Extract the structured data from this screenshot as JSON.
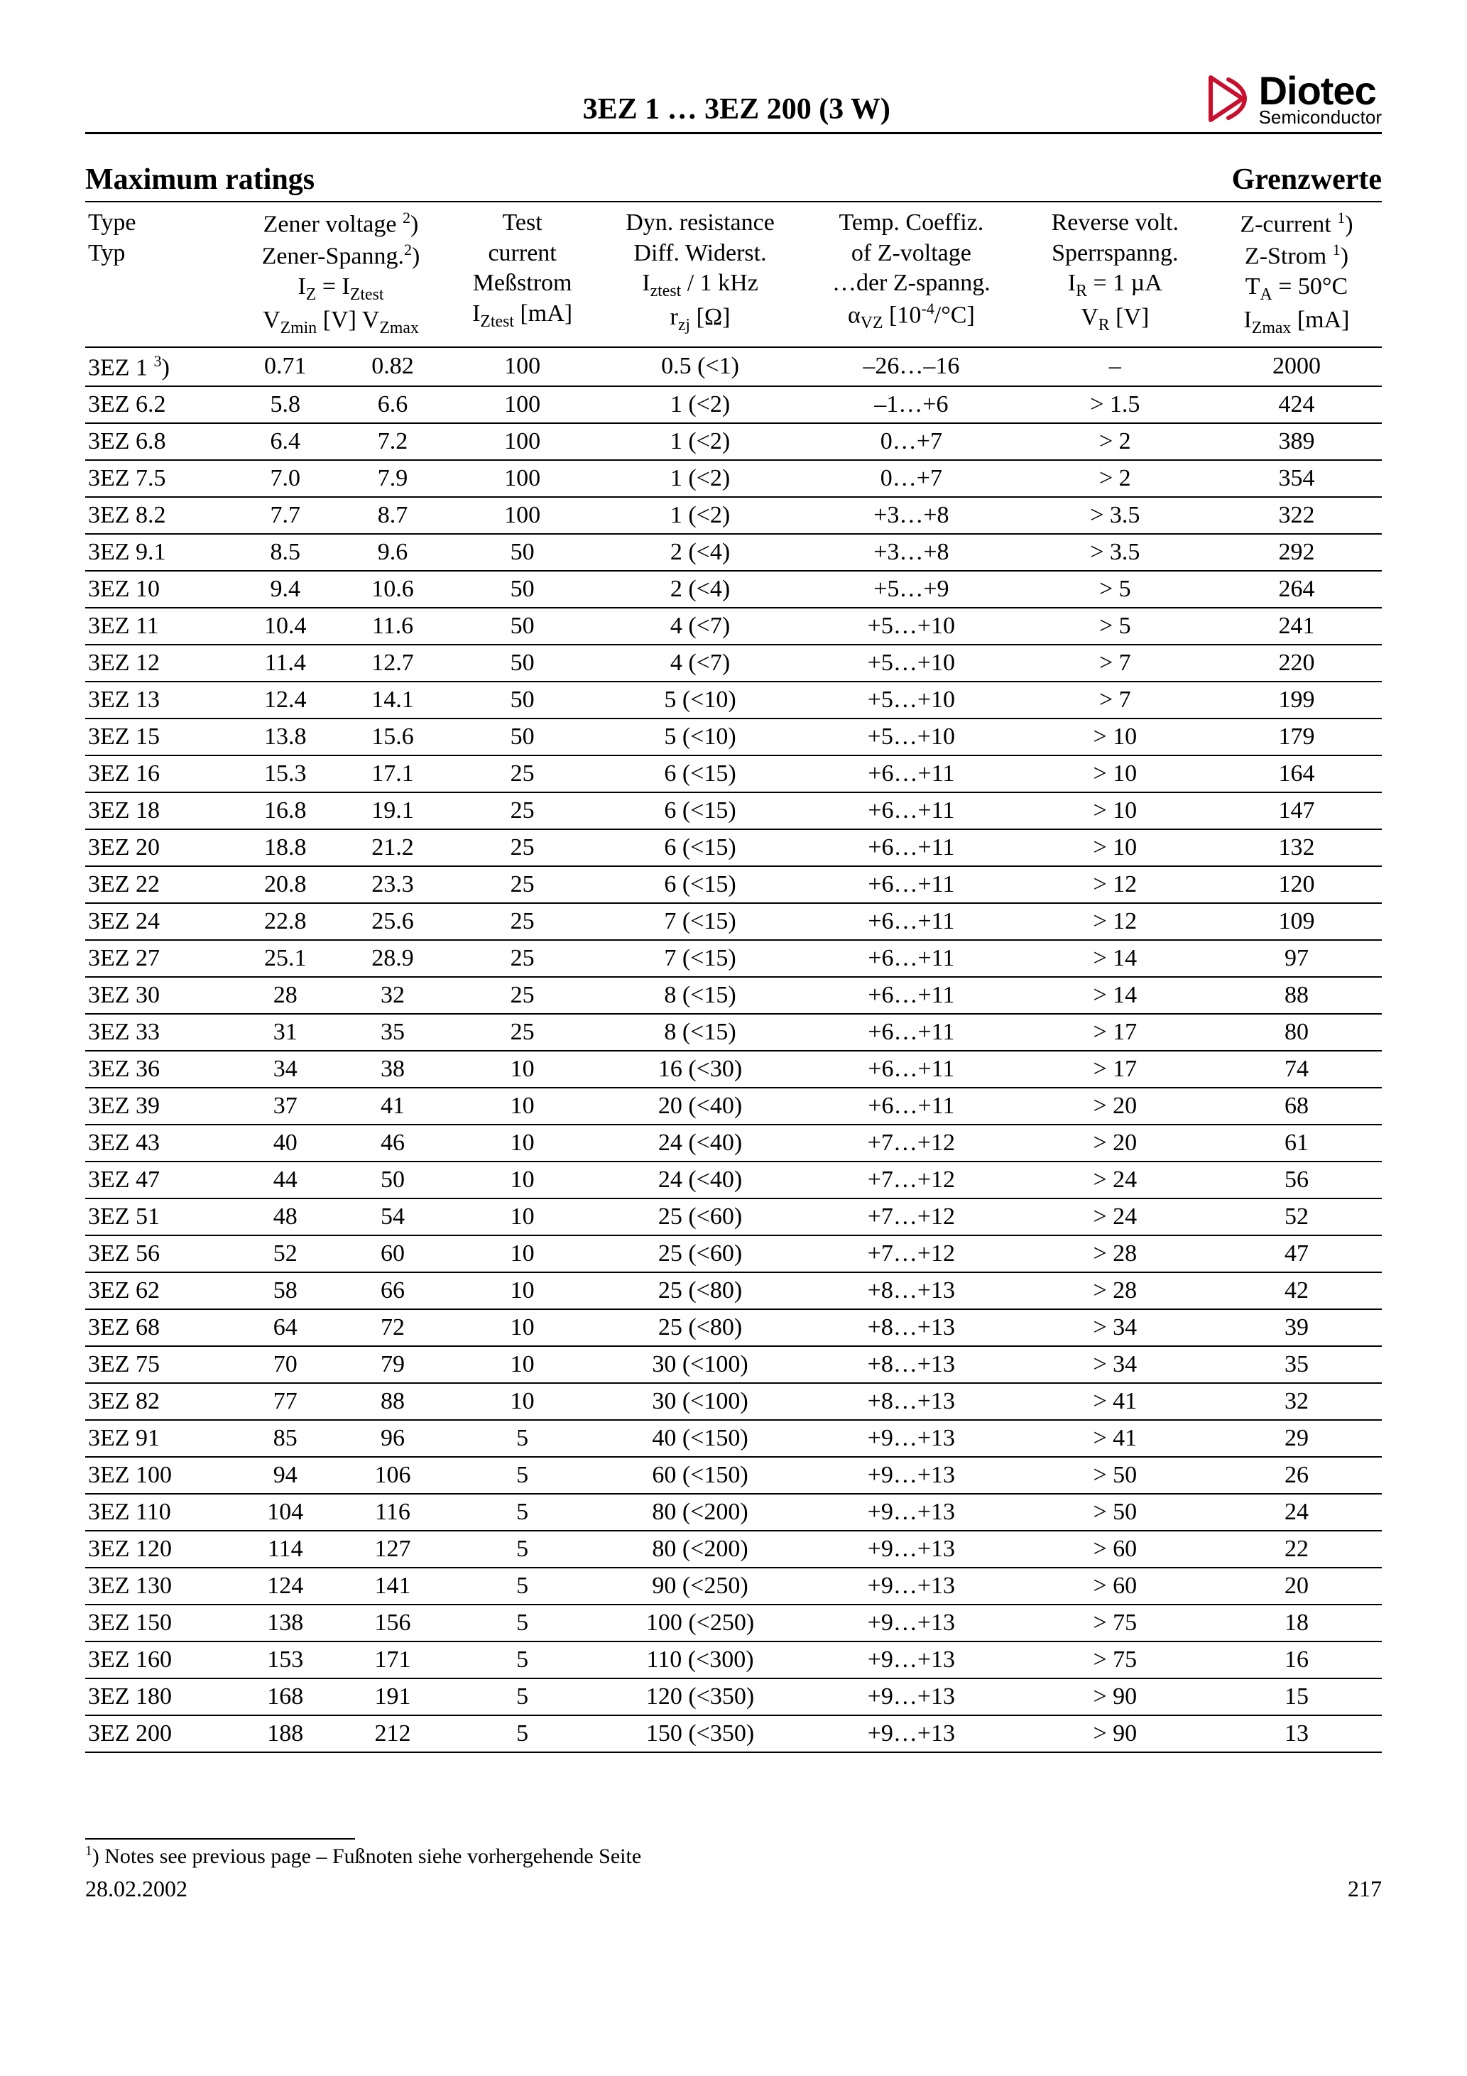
{
  "header": {
    "title": "3EZ 1 … 3EZ 200 (3 W)",
    "logo_main": "Diotec",
    "logo_sub": "Semiconductor"
  },
  "section": {
    "left": "Maximum ratings",
    "right": "Grenzwerte"
  },
  "columns": {
    "type_en": "Type",
    "type_de": "Typ",
    "zener_en": "Zener voltage ",
    "zener_sup": "2",
    "zener_de": "Zener-Spanng.",
    "zener_iz": "I",
    "zener_iz_sub": "Z",
    "zener_eq": " = I",
    "zener_izt_sub": "Ztest",
    "vmin": "V",
    "vmin_sub": "Zmin",
    "vunit": "  [V]  ",
    "vmax": "V",
    "vmax_sub": "Zmax",
    "test1": "Test",
    "test2": "current",
    "test3": "Meßstrom",
    "test4": "I",
    "test4_sub": "Ztest",
    "test_unit": " [mA]",
    "dyn1": "Dyn. resistance",
    "dyn2": "Diff. Widerst.",
    "dyn3": "I",
    "dyn3_sub": "ztest",
    "dyn3b": " / 1 kHz",
    "dyn4": "r",
    "dyn4_sub": "zj",
    "dyn_unit": " [Ω]",
    "temp1": "Temp. Coeffiz.",
    "temp2": "of Z-voltage",
    "temp3": "…der Z-spanng.",
    "temp4": "α",
    "temp4_sub": "VZ",
    "temp_unit": " [10",
    "temp_unit_sup": "-4",
    "temp_unit2": "/°C]",
    "vr1": "Reverse volt.",
    "vr2": "Sperrspanng.",
    "vr3": "I",
    "vr3_sub": "R",
    "vr3b": " = 1 µA",
    "vr4": "V",
    "vr4_sub": "R",
    "vr_unit": " [V]",
    "iz1": "Z-current ",
    "iz1_sup": "1",
    "iz2": "Z-Strom ",
    "iz2_sup": "1",
    "iz3": "T",
    "iz3_sub": "A",
    "iz3b": " = 50°C",
    "iz4": "I",
    "iz4_sub": "Zmax",
    "iz_unit": " [mA]"
  },
  "rows": [
    {
      "type": "3EZ 1 ",
      "type_sup": "3",
      "type_end": ")",
      "vmin": "0.71",
      "vmax": "0.82",
      "test": "100",
      "dyn": "0.5 (<1)",
      "temp": "–26…–16",
      "vr": "–",
      "iz": "2000"
    },
    {
      "type": "3EZ 6.2",
      "vmin": "5.8",
      "vmax": "6.6",
      "test": "100",
      "dyn": "1 (<2)",
      "temp": "–1…+6",
      "vr": "> 1.5",
      "iz": "424"
    },
    {
      "type": "3EZ 6.8",
      "vmin": "6.4",
      "vmax": "7.2",
      "test": "100",
      "dyn": "1 (<2)",
      "temp": "0…+7",
      "vr": "> 2",
      "iz": "389"
    },
    {
      "type": "3EZ 7.5",
      "vmin": "7.0",
      "vmax": "7.9",
      "test": "100",
      "dyn": "1 (<2)",
      "temp": "0…+7",
      "vr": "> 2",
      "iz": "354"
    },
    {
      "type": "3EZ 8.2",
      "vmin": "7.7",
      "vmax": "8.7",
      "test": "100",
      "dyn": "1 (<2)",
      "temp": "+3…+8",
      "vr": "> 3.5",
      "iz": "322"
    },
    {
      "type": "3EZ 9.1",
      "vmin": "8.5",
      "vmax": "9.6",
      "test": "50",
      "dyn": "2 (<4)",
      "temp": "+3…+8",
      "vr": "> 3.5",
      "iz": "292"
    },
    {
      "type": "3EZ 10",
      "vmin": "9.4",
      "vmax": "10.6",
      "test": "50",
      "dyn": "2 (<4)",
      "temp": "+5…+9",
      "vr": "> 5",
      "iz": "264"
    },
    {
      "type": "3EZ 11",
      "vmin": "10.4",
      "vmax": "11.6",
      "test": "50",
      "dyn": "4 (<7)",
      "temp": "+5…+10",
      "vr": "> 5",
      "iz": "241"
    },
    {
      "type": "3EZ 12",
      "vmin": "11.4",
      "vmax": "12.7",
      "test": "50",
      "dyn": "4 (<7)",
      "temp": "+5…+10",
      "vr": "> 7",
      "iz": "220"
    },
    {
      "type": "3EZ 13",
      "vmin": "12.4",
      "vmax": "14.1",
      "test": "50",
      "dyn": "5 (<10)",
      "temp": "+5…+10",
      "vr": "> 7",
      "iz": "199"
    },
    {
      "type": "3EZ 15",
      "vmin": "13.8",
      "vmax": "15.6",
      "test": "50",
      "dyn": "5 (<10)",
      "temp": "+5…+10",
      "vr": "> 10",
      "iz": "179"
    },
    {
      "type": "3EZ 16",
      "vmin": "15.3",
      "vmax": "17.1",
      "test": "25",
      "dyn": "6 (<15)",
      "temp": "+6…+11",
      "vr": "> 10",
      "iz": "164"
    },
    {
      "type": "3EZ 18",
      "vmin": "16.8",
      "vmax": "19.1",
      "test": "25",
      "dyn": "6 (<15)",
      "temp": "+6…+11",
      "vr": "> 10",
      "iz": "147"
    },
    {
      "type": "3EZ 20",
      "vmin": "18.8",
      "vmax": "21.2",
      "test": "25",
      "dyn": "6 (<15)",
      "temp": "+6…+11",
      "vr": "> 10",
      "iz": "132"
    },
    {
      "type": "3EZ 22",
      "vmin": "20.8",
      "vmax": "23.3",
      "test": "25",
      "dyn": "6 (<15)",
      "temp": "+6…+11",
      "vr": "> 12",
      "iz": "120"
    },
    {
      "type": "3EZ 24",
      "vmin": "22.8",
      "vmax": "25.6",
      "test": "25",
      "dyn": "7 (<15)",
      "temp": "+6…+11",
      "vr": "> 12",
      "iz": "109"
    },
    {
      "type": "3EZ 27",
      "vmin": "25.1",
      "vmax": "28.9",
      "test": "25",
      "dyn": "7 (<15)",
      "temp": "+6…+11",
      "vr": "> 14",
      "iz": "97"
    },
    {
      "type": "3EZ 30",
      "vmin": "28",
      "vmax": "32",
      "test": "25",
      "dyn": "8 (<15)",
      "temp": "+6…+11",
      "vr": "> 14",
      "iz": "88"
    },
    {
      "type": "3EZ 33",
      "vmin": "31",
      "vmax": "35",
      "test": "25",
      "dyn": "8 (<15)",
      "temp": "+6…+11",
      "vr": "> 17",
      "iz": "80"
    },
    {
      "type": "3EZ 36",
      "vmin": "34",
      "vmax": "38",
      "test": "10",
      "dyn": "16 (<30)",
      "temp": "+6…+11",
      "vr": "> 17",
      "iz": "74"
    },
    {
      "type": "3EZ 39",
      "vmin": "37",
      "vmax": "41",
      "test": "10",
      "dyn": "20 (<40)",
      "temp": "+6…+11",
      "vr": "> 20",
      "iz": "68"
    },
    {
      "type": "3EZ 43",
      "vmin": "40",
      "vmax": "46",
      "test": "10",
      "dyn": "24 (<40)",
      "temp": "+7…+12",
      "vr": "> 20",
      "iz": "61"
    },
    {
      "type": "3EZ 47",
      "vmin": "44",
      "vmax": "50",
      "test": "10",
      "dyn": "24 (<40)",
      "temp": "+7…+12",
      "vr": "> 24",
      "iz": "56"
    },
    {
      "type": "3EZ 51",
      "vmin": "48",
      "vmax": "54",
      "test": "10",
      "dyn": "25 (<60)",
      "temp": "+7…+12",
      "vr": "> 24",
      "iz": "52"
    },
    {
      "type": "3EZ 56",
      "vmin": "52",
      "vmax": "60",
      "test": "10",
      "dyn": "25 (<60)",
      "temp": "+7…+12",
      "vr": "> 28",
      "iz": "47"
    },
    {
      "type": "3EZ 62",
      "vmin": "58",
      "vmax": "66",
      "test": "10",
      "dyn": "25 (<80)",
      "temp": "+8…+13",
      "vr": "> 28",
      "iz": "42"
    },
    {
      "type": "3EZ 68",
      "vmin": "64",
      "vmax": "72",
      "test": "10",
      "dyn": "25 (<80)",
      "temp": "+8…+13",
      "vr": "> 34",
      "iz": "39"
    },
    {
      "type": "3EZ 75",
      "vmin": "70",
      "vmax": "79",
      "test": "10",
      "dyn": "30 (<100)",
      "temp": "+8…+13",
      "vr": "> 34",
      "iz": "35"
    },
    {
      "type": "3EZ 82",
      "vmin": "77",
      "vmax": "88",
      "test": "10",
      "dyn": "30 (<100)",
      "temp": "+8…+13",
      "vr": "> 41",
      "iz": "32"
    },
    {
      "type": "3EZ 91",
      "vmin": "85",
      "vmax": "96",
      "test": "5",
      "dyn": "40 (<150)",
      "temp": "+9…+13",
      "vr": "> 41",
      "iz": "29"
    },
    {
      "type": "3EZ 100",
      "vmin": "94",
      "vmax": "106",
      "test": "5",
      "dyn": "60 (<150)",
      "temp": "+9…+13",
      "vr": "> 50",
      "iz": "26"
    },
    {
      "type": "3EZ 110",
      "vmin": "104",
      "vmax": "116",
      "test": "5",
      "dyn": "80 (<200)",
      "temp": "+9…+13",
      "vr": "> 50",
      "iz": "24"
    },
    {
      "type": "3EZ 120",
      "vmin": "114",
      "vmax": "127",
      "test": "5",
      "dyn": "80 (<200)",
      "temp": "+9…+13",
      "vr": "> 60",
      "iz": "22"
    },
    {
      "type": "3EZ 130",
      "vmin": "124",
      "vmax": "141",
      "test": "5",
      "dyn": "90 (<250)",
      "temp": "+9…+13",
      "vr": "> 60",
      "iz": "20"
    },
    {
      "type": "3EZ 150",
      "vmin": "138",
      "vmax": "156",
      "test": "5",
      "dyn": "100 (<250)",
      "temp": "+9…+13",
      "vr": "> 75",
      "iz": "18"
    },
    {
      "type": "3EZ 160",
      "vmin": "153",
      "vmax": "171",
      "test": "5",
      "dyn": "110 (<300)",
      "temp": "+9…+13",
      "vr": "> 75",
      "iz": "16"
    },
    {
      "type": "3EZ 180",
      "vmin": "168",
      "vmax": "191",
      "test": "5",
      "dyn": "120 (<350)",
      "temp": "+9…+13",
      "vr": "> 90",
      "iz": "15"
    },
    {
      "type": "3EZ 200",
      "vmin": "188",
      "vmax": "212",
      "test": "5",
      "dyn": "150 (<350)",
      "temp": "+9…+13",
      "vr": "> 90",
      "iz": "13"
    }
  ],
  "footnote": {
    "sup": "1",
    "text": ")   Notes see previous page – Fußnoten siehe vorhergehende Seite"
  },
  "footer": {
    "date": "28.02.2002",
    "page": "217"
  },
  "logo_color": "#c8102e"
}
